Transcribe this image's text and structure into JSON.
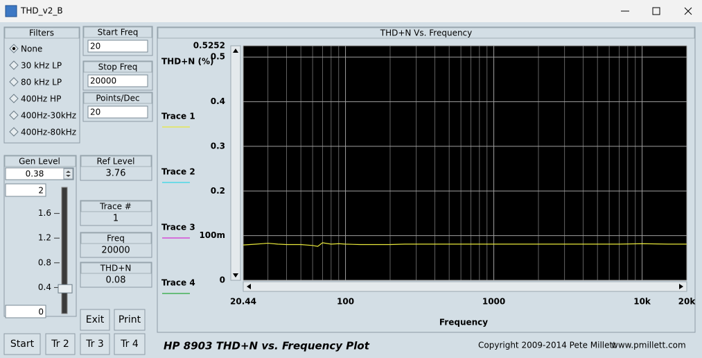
{
  "window": {
    "title": "THD_v2_B"
  },
  "filters": {
    "title": "Filters",
    "options": [
      {
        "label": "None",
        "selected": true
      },
      {
        "label": "30 kHz LP",
        "selected": false
      },
      {
        "label": "80 kHz LP",
        "selected": false
      },
      {
        "label": "400Hz HP",
        "selected": false
      },
      {
        "label": "400Hz-30kHz",
        "selected": false
      },
      {
        "label": "400Hz-80kHz",
        "selected": false
      }
    ]
  },
  "fields": [
    {
      "label": "Start Freq",
      "value": 20
    },
    {
      "label": "Stop Freq",
      "value": 20000
    },
    {
      "label": "Points/Dec",
      "value": 20
    }
  ],
  "gen_level": {
    "label": "Gen Level",
    "value": 0.38
  },
  "slider": {
    "max": 2,
    "min": 0,
    "ticks": [
      1.6,
      1.2,
      0.8,
      0.4
    ]
  },
  "readouts": [
    {
      "label": "Ref Level",
      "value": 3.76
    },
    {
      "label": "Trace #",
      "value": 1
    },
    {
      "label": "Freq",
      "value": 20000
    },
    {
      "label": "THD+N",
      "value": 0.08
    }
  ],
  "buttons": [
    "Exit",
    "Print",
    "Start",
    "Tr 2",
    "Tr 3",
    "Tr 4"
  ],
  "footer": {
    "title": "HP 8903 THD+N vs. Frequency Plot",
    "copyright": "Copyright 2009-2014 Pete Millett",
    "url": "www.pmillett.com"
  },
  "chart_data": {
    "type": "line",
    "title": "THD+N Vs. Frequency",
    "y_label": "THD+N (%)",
    "x_label": "Frequency",
    "x_log": true,
    "x": [
      20.44,
      25,
      30,
      35,
      40,
      50,
      60,
      65,
      70,
      80,
      90,
      100,
      125,
      150,
      200,
      250,
      300,
      400,
      500,
      700,
      1000,
      1500,
      2000,
      3000,
      5000,
      7000,
      10000,
      15000,
      20000
    ],
    "series": [
      {
        "name": "Trace 1",
        "color": "#e8e83a",
        "values": [
          0.079,
          0.081,
          0.083,
          0.081,
          0.08,
          0.08,
          0.078,
          0.076,
          0.084,
          0.081,
          0.082,
          0.081,
          0.08,
          0.08,
          0.08,
          0.081,
          0.081,
          0.081,
          0.081,
          0.081,
          0.081,
          0.081,
          0.081,
          0.081,
          0.081,
          0.081,
          0.082,
          0.081,
          0.081
        ]
      },
      {
        "name": "Trace 2",
        "color": "#33d6e8"
      },
      {
        "name": "Trace 3",
        "color": "#d430d4"
      },
      {
        "name": "Trace 4",
        "color": "#28a83c"
      }
    ],
    "xlim": [
      20.44,
      20000
    ],
    "ylim": [
      0,
      0.5252
    ],
    "xticks": [
      20.44,
      100,
      1000,
      {
        "value": 10000,
        "label": "10k"
      },
      {
        "value": 20000,
        "label": "20k"
      }
    ],
    "xminor_ticks": [
      30,
      40,
      50,
      60,
      70,
      80,
      90,
      200,
      300,
      400,
      500,
      600,
      700,
      800,
      900,
      2000,
      3000,
      4000,
      5000,
      6000,
      7000,
      8000,
      9000
    ],
    "yticks": [
      0,
      {
        "value": 0.1,
        "label": "100m"
      },
      0.2,
      0.3,
      0.4,
      0.5,
      0.5252
    ],
    "grid": true,
    "background": "#000000"
  }
}
